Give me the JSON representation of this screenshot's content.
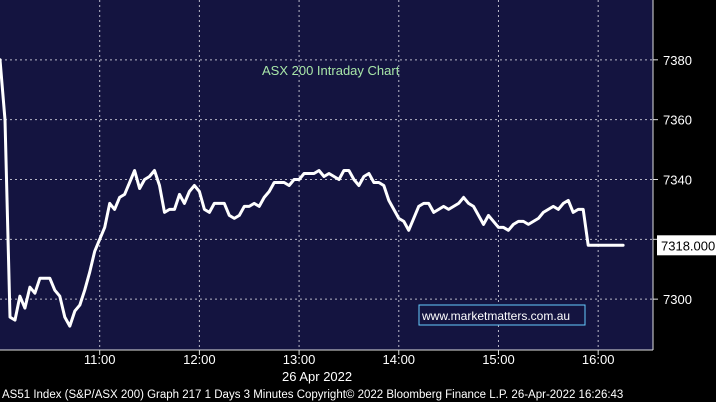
{
  "colors": {
    "plot_background": "#141440",
    "outer_background": "#000000",
    "line": "#ffffff",
    "gridline": "#b8b8c8",
    "title": "#a8e6a8",
    "watermark_border": "#66ccff"
  },
  "footer": "AS51 Index (S&P/ASX 200) Graph 217 1 Days 3 Minutes Copyright© 2022 Bloomberg Finance L.P. 26-Apr-2022 16:26:43",
  "watermark": "www.marketmatters.com.au",
  "chart_data": {
    "type": "line",
    "title": "ASX 200 Intraday Chart",
    "xlabel": "26 Apr 2022",
    "ylabel": "",
    "x_ticks": [
      "11:00",
      "12:00",
      "13:00",
      "14:00",
      "15:00",
      "16:00"
    ],
    "y_ticks": [
      7300,
      7320,
      7340,
      7360,
      7380
    ],
    "y_tick_labels": [
      "7300",
      "7340",
      "7360",
      "7380"
    ],
    "ylim": [
      7283,
      7400
    ],
    "xlim": [
      "10:00",
      "16:33"
    ],
    "grid": true,
    "last_value_label": "7318.000",
    "series": [
      {
        "x": [
          "10:00",
          "10:03",
          "10:06",
          "10:09",
          "10:12",
          "10:15",
          "10:18",
          "10:21",
          "10:24",
          "10:27",
          "10:30",
          "10:33",
          "10:36",
          "10:39",
          "10:42",
          "10:45",
          "10:48",
          "10:51",
          "10:54",
          "10:57",
          "11:00",
          "11:03",
          "11:06",
          "11:09",
          "11:12",
          "11:15",
          "11:18",
          "11:21",
          "11:24",
          "11:27",
          "11:30",
          "11:33",
          "11:36",
          "11:39",
          "11:42",
          "11:45",
          "11:48",
          "11:51",
          "11:54",
          "11:57",
          "12:00",
          "12:03",
          "12:06",
          "12:09",
          "12:12",
          "12:15",
          "12:18",
          "12:21",
          "12:24",
          "12:27",
          "12:30",
          "12:33",
          "12:36",
          "12:39",
          "12:42",
          "12:45",
          "12:48",
          "12:51",
          "12:54",
          "12:57",
          "13:00",
          "13:03",
          "13:06",
          "13:09",
          "13:12",
          "13:15",
          "13:18",
          "13:21",
          "13:24",
          "13:27",
          "13:30",
          "13:33",
          "13:36",
          "13:39",
          "13:42",
          "13:45",
          "13:48",
          "13:51",
          "13:54",
          "13:57",
          "14:00",
          "14:03",
          "14:06",
          "14:09",
          "14:12",
          "14:15",
          "14:18",
          "14:21",
          "14:24",
          "14:27",
          "14:30",
          "14:33",
          "14:36",
          "14:39",
          "14:42",
          "14:45",
          "14:48",
          "14:51",
          "14:54",
          "14:57",
          "15:00",
          "15:03",
          "15:06",
          "15:09",
          "15:12",
          "15:15",
          "15:18",
          "15:21",
          "15:24",
          "15:27",
          "15:30",
          "15:33",
          "15:36",
          "15:39",
          "15:42",
          "15:45",
          "15:48",
          "15:51",
          "15:54",
          "15:57",
          "16:00",
          "16:03",
          "16:06",
          "16:09",
          "16:12",
          "16:15"
        ],
        "values": [
          7380,
          7360,
          7294,
          7293,
          7301,
          7297,
          7304,
          7302,
          7307,
          7307,
          7307,
          7303,
          7301,
          7294,
          7291,
          7296,
          7298,
          7303,
          7309,
          7316,
          7320,
          7324,
          7332,
          7330,
          7334,
          7335,
          7339,
          7343,
          7337,
          7340,
          7341,
          7343,
          7338,
          7329,
          7330,
          7330,
          7335,
          7332,
          7336,
          7338,
          7336,
          7330,
          7329,
          7332,
          7332,
          7332,
          7328,
          7327,
          7328,
          7331,
          7331,
          7332,
          7331,
          7334,
          7336,
          7339,
          7339,
          7339,
          7338,
          7340,
          7340,
          7342,
          7342,
          7342,
          7343,
          7341,
          7342,
          7341,
          7340,
          7343,
          7343,
          7340,
          7338,
          7341,
          7342,
          7339,
          7339,
          7338,
          7333,
          7330,
          7327,
          7326,
          7323,
          7327,
          7331,
          7332,
          7332,
          7329,
          7330,
          7331,
          7330,
          7331,
          7332,
          7334,
          7332,
          7331,
          7328,
          7325,
          7328,
          7326,
          7324,
          7324,
          7323,
          7325,
          7326,
          7326,
          7325,
          7326,
          7327,
          7329,
          7330,
          7331,
          7330,
          7332,
          7333,
          7329,
          7330,
          7330,
          7318,
          7318,
          7318,
          7318,
          7318,
          7318,
          7318,
          7318
        ]
      }
    ]
  }
}
